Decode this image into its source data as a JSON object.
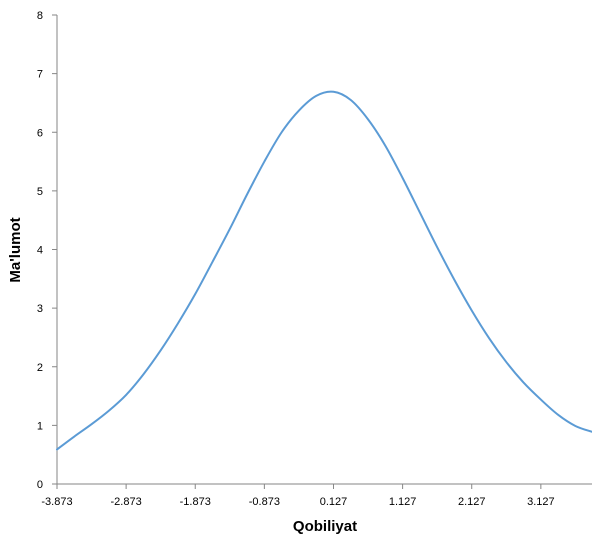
{
  "chart_data": {
    "type": "line",
    "title": "",
    "xlabel": "Qobiliyat",
    "ylabel": "Ma'lumot",
    "x_tick_labels": [
      "-3.873",
      "-2.873",
      "-1.873",
      "-0.873",
      "0.127",
      "1.127",
      "2.127",
      "3.127"
    ],
    "y_tick_labels": [
      "0",
      "1",
      "2",
      "3",
      "4",
      "5",
      "6",
      "7",
      "8"
    ],
    "xlim": [
      -3.873,
      3.867
    ],
    "ylim": [
      0,
      8
    ],
    "grid": false,
    "legend": "none",
    "series": [
      {
        "color": "#5B9BD5",
        "x": [
          -3.873,
          -3.623,
          -3.373,
          -3.123,
          -2.873,
          -2.623,
          -2.373,
          -2.123,
          -1.873,
          -1.623,
          -1.373,
          -1.123,
          -0.873,
          -0.623,
          -0.373,
          -0.123,
          0.127,
          0.377,
          0.627,
          0.877,
          1.127,
          1.377,
          1.627,
          1.877,
          2.127,
          2.377,
          2.627,
          2.877,
          3.127,
          3.377,
          3.627,
          3.867
        ],
        "y": [
          0.59,
          0.81,
          1.02,
          1.25,
          1.52,
          1.87,
          2.28,
          2.74,
          3.24,
          3.79,
          4.35,
          4.94,
          5.5,
          6.0,
          6.37,
          6.62,
          6.69,
          6.55,
          6.22,
          5.77,
          5.22,
          4.63,
          4.04,
          3.48,
          2.96,
          2.49,
          2.08,
          1.73,
          1.44,
          1.18,
          0.99,
          0.89
        ]
      }
    ]
  }
}
